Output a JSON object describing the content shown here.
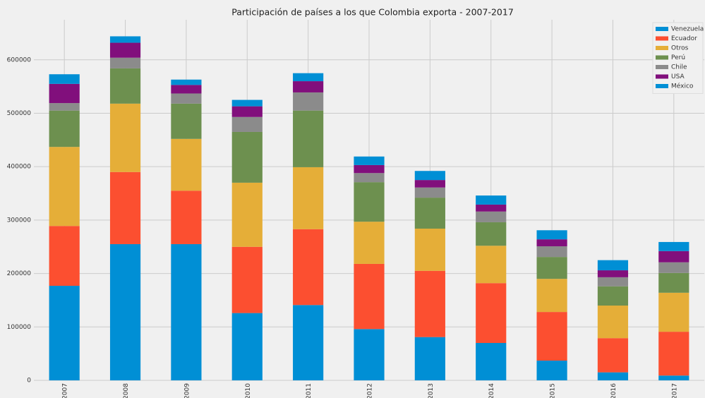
{
  "chart_data": {
    "type": "stacked-bar",
    "title": "Participación de países a los que Colombia exporta - 2007-2017",
    "categories": [
      "2007",
      "2008",
      "2009",
      "2010",
      "2011",
      "2012",
      "2013",
      "2014",
      "2015",
      "2016",
      "2017"
    ],
    "series": [
      {
        "name": "Venezuela",
        "color": "#008fd5",
        "values": [
          177000,
          255000,
          255000,
          126000,
          141000,
          96000,
          81000,
          70000,
          37000,
          15000,
          9000
        ]
      },
      {
        "name": "Ecuador",
        "color": "#fc4f30",
        "values": [
          112000,
          135000,
          100000,
          124000,
          142000,
          122000,
          124000,
          112000,
          91000,
          64000,
          82000
        ]
      },
      {
        "name": "Otros",
        "color": "#e5ae38",
        "values": [
          148000,
          128000,
          97000,
          120000,
          116000,
          79000,
          79000,
          70000,
          62000,
          61000,
          73000
        ]
      },
      {
        "name": "Perú",
        "color": "#6d904f",
        "values": [
          68000,
          66000,
          66000,
          95000,
          106000,
          74000,
          58000,
          44000,
          41000,
          36000,
          37000
        ]
      },
      {
        "name": "Chile",
        "color": "#8b8b8b",
        "values": [
          14000,
          20000,
          19000,
          28000,
          34000,
          17000,
          19000,
          20000,
          20000,
          17000,
          20000
        ]
      },
      {
        "name": "USA",
        "color": "#810f7c",
        "values": [
          36000,
          28000,
          16000,
          20000,
          21000,
          15000,
          14000,
          13000,
          13000,
          13000,
          21000
        ]
      },
      {
        "name": "México",
        "color": "#008fd5",
        "values": [
          18000,
          12000,
          10000,
          12000,
          15000,
          16000,
          17000,
          17000,
          17000,
          19000,
          17000
        ]
      }
    ],
    "ylim": [
      0,
      675000
    ],
    "yticks": [
      0,
      100000,
      200000,
      300000,
      400000,
      500000,
      600000
    ],
    "grid": true,
    "legend": "upper right"
  }
}
